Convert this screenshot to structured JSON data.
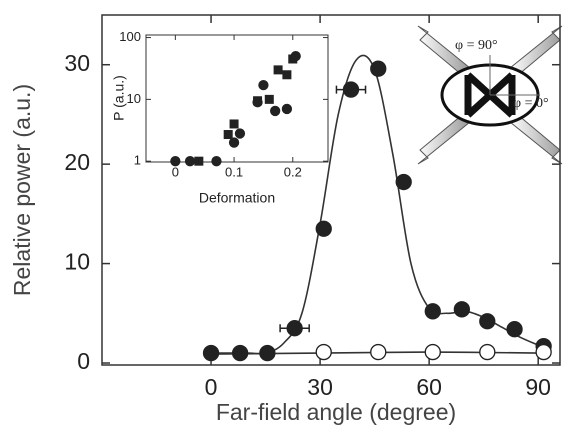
{
  "chart_data": [
    {
      "type": "scatter",
      "xlabel": "Far-field angle  (degree)",
      "ylabel": "Relative power  (a.u.)",
      "xlim": [
        -30,
        96
      ],
      "ylim": [
        -0.2,
        35
      ],
      "xticks": [
        0,
        30,
        60,
        90
      ],
      "yticks": [
        0,
        10,
        20,
        30
      ],
      "annotations": [
        "φ = 90°",
        "φ = 0°"
      ],
      "series": [
        {
          "marker": "filled",
          "color": "#222222",
          "x": [
            0,
            8,
            15.5,
            23,
            31,
            38.5,
            46,
            53,
            61,
            69,
            76,
            83.5,
            91.5
          ],
          "values": [
            1,
            1,
            1,
            3.5,
            13.5,
            27.5,
            29.6,
            18.2,
            5.2,
            5.4,
            4.2,
            3.4,
            1.7
          ],
          "xerr": [
            null,
            null,
            null,
            4,
            null,
            4,
            null,
            null,
            null,
            null,
            null,
            null,
            null
          ]
        },
        {
          "marker": "open",
          "color": "#222222",
          "x": [
            31,
            46,
            61,
            76,
            91.5
          ],
          "values": [
            1.1,
            1.1,
            1.1,
            1.1,
            1.1
          ]
        },
        {
          "marker": "line",
          "color": "#333333",
          "x": [
            0,
            10,
            15,
            20,
            25,
            30,
            35,
            40,
            45,
            50,
            55,
            60,
            65,
            70,
            75,
            80,
            85,
            90
          ],
          "values": [
            1,
            1,
            1,
            2,
            5,
            14,
            25,
            30.5,
            29.5,
            21,
            10,
            5.5,
            5,
            5.2,
            4.6,
            3.6,
            2.6,
            1.8
          ]
        },
        {
          "marker": "line",
          "color": "#333333",
          "x": [
            0,
            30,
            60,
            90
          ],
          "values": [
            0.9,
            1,
            1.1,
            1
          ]
        }
      ]
    },
    {
      "type": "scatter",
      "log_y": true,
      "xlabel": "Deformation",
      "ylabel": "P (a.u.)",
      "xlim": [
        -0.05,
        0.26
      ],
      "ylim": [
        0.97,
        110
      ],
      "xticks": [
        0,
        0.1,
        0.2
      ],
      "yticks": [
        1,
        10,
        100
      ],
      "series": [
        {
          "marker": "circle",
          "color": "#222222",
          "x": [
            0,
            0.025,
            0.07,
            0.1,
            0.11,
            0.14,
            0.15,
            0.17,
            0.19,
            0.205
          ],
          "values": [
            1,
            1,
            1,
            2,
            2.8,
            9,
            17,
            6.5,
            7,
            50
          ]
        },
        {
          "marker": "square",
          "color": "#222222",
          "x": [
            0.04,
            0.09,
            0.1,
            0.14,
            0.16,
            0.175,
            0.19,
            0.2
          ],
          "values": [
            1,
            2.7,
            4,
            9.5,
            10,
            30,
            25,
            45
          ]
        }
      ]
    }
  ]
}
